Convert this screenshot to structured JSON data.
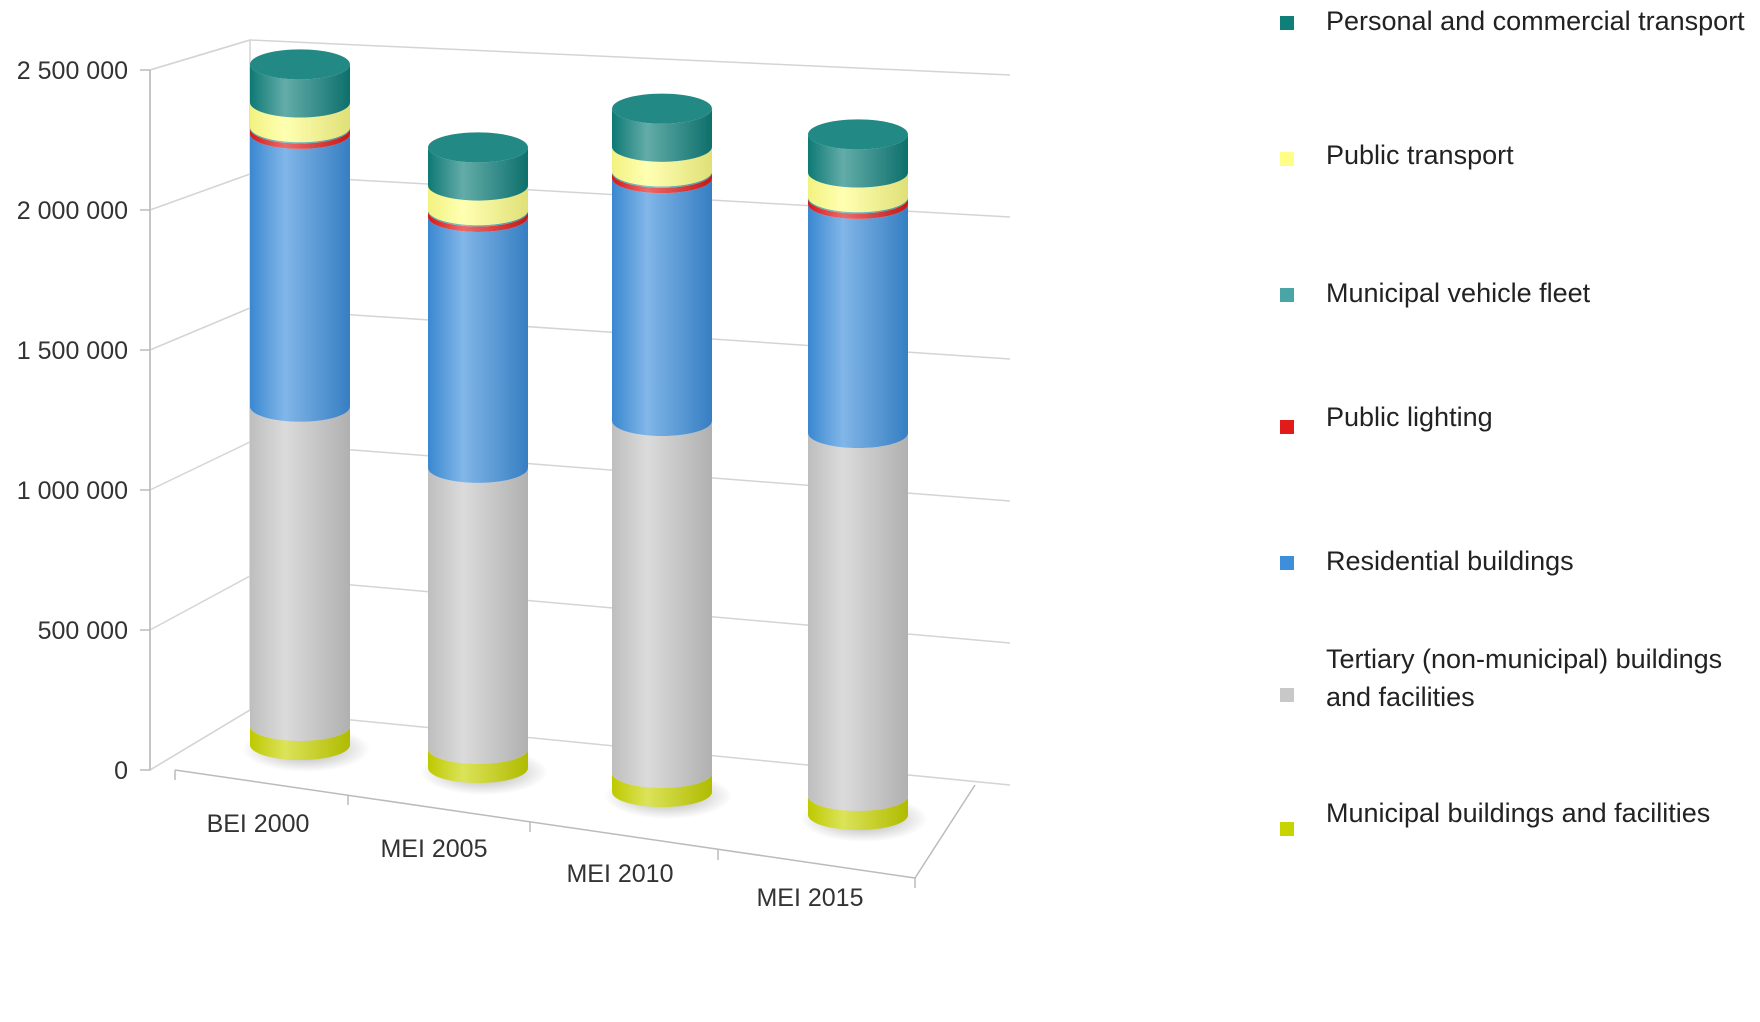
{
  "chart_data": {
    "type": "bar",
    "stacked": true,
    "style": "3d-cylinder",
    "categories": [
      "BEI 2000",
      "MEI 2005",
      "MEI 2010",
      "MEI 2015"
    ],
    "yticks": [
      "0",
      "500 000",
      "1 000 000",
      "1 500 000",
      "2 000 000",
      "2 500 000"
    ],
    "ylim": [
      0,
      2500000
    ],
    "grid": true,
    "legend_position": "right",
    "series": [
      {
        "name": "Municipal buildings and facilities",
        "color": "#c8d400",
        "values": [
          70000,
          70000,
          70000,
          70000
        ]
      },
      {
        "name": "Tertiary (non-municipal) buildings and facilities",
        "color": "#c8c8c8",
        "values": [
          1170000,
          1030000,
          1290000,
          1330000
        ]
      },
      {
        "name": "Residential buildings",
        "color": "#3d8fdc",
        "values": [
          1000000,
          920000,
          890000,
          840000
        ]
      },
      {
        "name": "Public lighting",
        "color": "#e11a1a",
        "values": [
          20000,
          20000,
          20000,
          20000
        ]
      },
      {
        "name": "Municipal vehicle fleet",
        "color": "#4aa6a6",
        "values": [
          5000,
          5000,
          5000,
          5000
        ]
      },
      {
        "name": "Public transport",
        "color": "#ffff88",
        "values": [
          90000,
          90000,
          90000,
          90000
        ]
      },
      {
        "name": "Personal and commercial transport",
        "color": "#0f7f7a",
        "values": [
          140000,
          140000,
          140000,
          140000
        ]
      }
    ]
  },
  "legend": {
    "items": [
      {
        "label": "Personal and commercial transport",
        "color": "#0f7f7a"
      },
      {
        "label": "Public transport",
        "color": "#ffff88"
      },
      {
        "label": "Municipal vehicle fleet",
        "color": "#4aa6a6"
      },
      {
        "label": "Public lighting",
        "color": "#e11a1a"
      },
      {
        "label": "Residential buildings",
        "color": "#3d8fdc"
      },
      {
        "label": "Tertiary (non-municipal) buildings and facilities",
        "color": "#c8c8c8"
      },
      {
        "label": "Municipal buildings and facilities",
        "color": "#c8d400"
      }
    ]
  }
}
